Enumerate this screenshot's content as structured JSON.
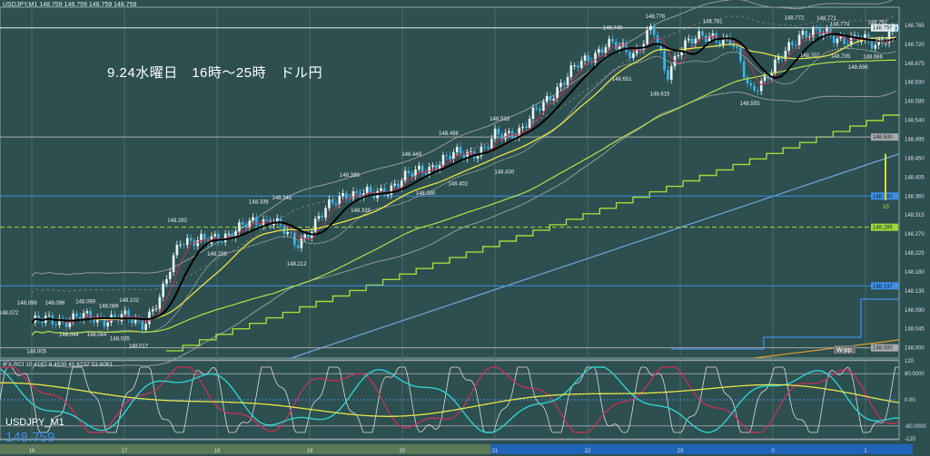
{
  "header": {
    "symbol_line": "USDJPY,M1 148.759 148.759 148.759 148.759"
  },
  "memo": "9.24水曜日　16時～25時　ドル円",
  "footer": {
    "symbol": "USDJPY_M1",
    "last_price": "148.759"
  },
  "colors": {
    "bg": "#2d4f4f",
    "candle_up": "#e8f4f4",
    "candle_down": "#3fb3e6",
    "ma_black": "#000000",
    "ma_yellow": "#e6e64a",
    "ma_green": "#b5e04a",
    "step_green": "#9fdc3a",
    "blue_line": "#6fa8dc",
    "red_ma": "#c8305a"
  },
  "chart_data": {
    "type": "line",
    "title": "USDJPY M1",
    "xlabel": "",
    "ylabel": "",
    "ylim": [
      148.0,
      148.81
    ],
    "x_ticks": [
      "16",
      "17",
      "18",
      "19",
      "20",
      "21",
      "22",
      "23",
      "0",
      "1"
    ],
    "y_ticks": [
      "148.810",
      "148.765",
      "148.720",
      "148.675",
      "148.630",
      "148.585",
      "148.540",
      "148.495",
      "148.450",
      "148.405",
      "148.360",
      "148.315",
      "148.270",
      "148.225",
      "148.180",
      "148.135",
      "148.090",
      "148.045",
      "148.000"
    ],
    "price_path": [
      [
        0,
        148.06
      ],
      [
        0.5,
        148.07
      ],
      [
        1.0,
        148.07
      ],
      [
        1.2,
        148.06
      ],
      [
        1.4,
        148.12
      ],
      [
        1.6,
        148.26
      ],
      [
        1.9,
        148.25
      ],
      [
        2.2,
        148.28
      ],
      [
        2.6,
        148.31
      ],
      [
        2.85,
        148.24
      ],
      [
        3.1,
        148.31
      ],
      [
        3.4,
        148.37
      ],
      [
        3.7,
        148.36
      ],
      [
        4.0,
        148.4
      ],
      [
        4.3,
        148.43
      ],
      [
        4.6,
        148.46
      ],
      [
        4.9,
        148.47
      ],
      [
        5.0,
        148.5
      ],
      [
        5.3,
        148.52
      ],
      [
        5.6,
        148.6
      ],
      [
        5.9,
        148.67
      ],
      [
        6.2,
        148.72
      ],
      [
        6.5,
        148.7
      ],
      [
        6.7,
        148.76
      ],
      [
        6.85,
        148.64
      ],
      [
        7.0,
        148.72
      ],
      [
        7.35,
        148.74
      ],
      [
        7.55,
        148.73
      ],
      [
        7.75,
        148.61
      ],
      [
        8.0,
        148.66
      ],
      [
        8.3,
        148.75
      ],
      [
        8.6,
        148.74
      ],
      [
        8.9,
        148.73
      ],
      [
        9.1,
        148.72
      ],
      [
        9.33,
        148.759
      ]
    ],
    "annotations": [
      {
        "t": -0.25,
        "p": 148.072,
        "label": "148.072"
      },
      {
        "t": -0.05,
        "p": 148.096,
        "label": "148.096"
      },
      {
        "t": 0.25,
        "p": 148.096,
        "label": "148.096"
      },
      {
        "t": 0.05,
        "p": 148.005,
        "label": "148.005"
      },
      {
        "t": 0.4,
        "p": 148.044,
        "label": "148.044"
      },
      {
        "t": 0.58,
        "p": 148.099,
        "label": "148.099"
      },
      {
        "t": 0.7,
        "p": 148.044,
        "label": "148.044"
      },
      {
        "t": 0.83,
        "p": 148.089,
        "label": "148.089"
      },
      {
        "t": 0.95,
        "p": 148.035,
        "label": "148.035"
      },
      {
        "t": 1.05,
        "p": 148.102,
        "label": "148.102"
      },
      {
        "t": 1.15,
        "p": 148.017,
        "label": "148.017"
      },
      {
        "t": 1.57,
        "p": 148.292,
        "label": "148.292"
      },
      {
        "t": 2.0,
        "p": 148.236,
        "label": "148.236"
      },
      {
        "t": 2.45,
        "p": 148.336,
        "label": "148.336"
      },
      {
        "t": 2.7,
        "p": 148.345,
        "label": "148.345"
      },
      {
        "t": 2.86,
        "p": 148.212,
        "label": "148.212"
      },
      {
        "t": 3.43,
        "p": 148.399,
        "label": "148.399"
      },
      {
        "t": 3.55,
        "p": 148.339,
        "label": "148.339"
      },
      {
        "t": 4.1,
        "p": 148.449,
        "label": "148.449"
      },
      {
        "t": 4.25,
        "p": 148.38,
        "label": "148.380"
      },
      {
        "t": 4.5,
        "p": 148.498,
        "label": "148.498"
      },
      {
        "t": 4.6,
        "p": 148.402,
        "label": "148.402"
      },
      {
        "t": 5.05,
        "p": 148.533,
        "label": "148.533"
      },
      {
        "t": 5.1,
        "p": 148.43,
        "label": "148.430"
      },
      {
        "t": 6.27,
        "p": 148.749,
        "label": "148.749"
      },
      {
        "t": 6.37,
        "p": 148.651,
        "label": "148.651"
      },
      {
        "t": 6.73,
        "p": 148.776,
        "label": "148.776"
      },
      {
        "t": 6.78,
        "p": 148.615,
        "label": "148.615"
      },
      {
        "t": 7.35,
        "p": 148.781,
        "label": "148.781"
      },
      {
        "t": 7.75,
        "p": 148.593,
        "label": "148.593"
      },
      {
        "t": 8.23,
        "p": 148.772,
        "label": "148.772"
      },
      {
        "t": 8.4,
        "p": 148.707,
        "label": "148.707"
      },
      {
        "t": 8.58,
        "p": 148.771,
        "label": "148.771"
      },
      {
        "t": 8.73,
        "p": 148.705,
        "label": "148.705"
      },
      {
        "t": 8.72,
        "p": 148.774,
        "label": "148.774"
      },
      {
        "t": 8.92,
        "p": 148.696,
        "label": "148.696"
      },
      {
        "t": 9.08,
        "p": 148.686,
        "label": "148.686"
      },
      {
        "t": 9.13,
        "p": 148.762,
        "label": "148.762"
      },
      {
        "t": 9.4,
        "p": 148.772,
        "label": "148.772"
      }
    ],
    "h_lines": [
      {
        "p": 148.759,
        "label": "148.759",
        "color": "#e8f0f0"
      },
      {
        "p": 148.5,
        "label": "148.500",
        "color": "#aaaaaa"
      },
      {
        "p": 148.36,
        "label": "148.360",
        "color": "#3f8fe6"
      },
      {
        "p": 148.286,
        "label": "148.286",
        "color": "#9fdc3a"
      },
      {
        "p": 148.147,
        "label": "148.147",
        "color": "#3f8fe6"
      },
      {
        "p": 148.0,
        "label": "148.000",
        "color": "#aaaaaa"
      }
    ],
    "wpp_label": "W-pp",
    "volume_label": "10",
    "indicator": {
      "name": "IFX-RCI 10.4167 9.4530 41.6237 53.6061",
      "ylim": [
        -120,
        120
      ],
      "ticks": [
        "120",
        "80.0000",
        "0.00",
        "-80.0000",
        "-120"
      ]
    }
  }
}
